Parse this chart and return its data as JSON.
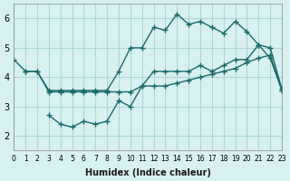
{
  "xlabel": "Humidex (Indice chaleur)",
  "bg_color": "#d8f0f0",
  "grid_color": "#b0d8d8",
  "line_color": "#1a6b6b",
  "xlim": [
    0,
    23
  ],
  "ylim": [
    1.5,
    6.5
  ],
  "xticks": [
    0,
    1,
    2,
    3,
    4,
    5,
    6,
    7,
    8,
    9,
    10,
    11,
    12,
    13,
    14,
    15,
    16,
    17,
    18,
    19,
    20,
    21,
    22,
    23
  ],
  "yticks": [
    2,
    3,
    4,
    5,
    6
  ],
  "line1_x": [
    0,
    1,
    2,
    3,
    4,
    5,
    6,
    7,
    8,
    9,
    10,
    11,
    12,
    13,
    14,
    15,
    16,
    17,
    18,
    19,
    20,
    21,
    22,
    23
  ],
  "line1_y": [
    4.6,
    4.2,
    4.2,
    3.5,
    3.5,
    3.5,
    3.5,
    3.5,
    3.5,
    3.5,
    3.5,
    3.7,
    4.2,
    4.2,
    4.2,
    4.2,
    4.4,
    4.2,
    4.4,
    4.6,
    4.6,
    5.1,
    5.0,
    3.6
  ],
  "line2_x": [
    3,
    4,
    5,
    6,
    7,
    8,
    9,
    10,
    11,
    12,
    13,
    14,
    15,
    16,
    17,
    18,
    19,
    20,
    21,
    22,
    23
  ],
  "line2_y": [
    2.7,
    2.4,
    2.3,
    2.5,
    2.4,
    2.5,
    3.2,
    3.0,
    3.7,
    3.7,
    3.7,
    3.8,
    3.9,
    4.0,
    4.1,
    4.2,
    4.3,
    4.5,
    4.65,
    4.75,
    3.55
  ],
  "line3_x": [
    1,
    2,
    3,
    4,
    5,
    6,
    7,
    8,
    9,
    10,
    11,
    12,
    13,
    14,
    15,
    16,
    17,
    18,
    19,
    20,
    21,
    22,
    23
  ],
  "line3_y": [
    4.2,
    4.2,
    3.55,
    3.55,
    3.55,
    3.55,
    3.55,
    3.55,
    4.2,
    5.0,
    5.0,
    5.7,
    5.6,
    6.15,
    5.8,
    5.9,
    5.7,
    5.5,
    5.9,
    5.55,
    5.1,
    4.65,
    3.55
  ]
}
